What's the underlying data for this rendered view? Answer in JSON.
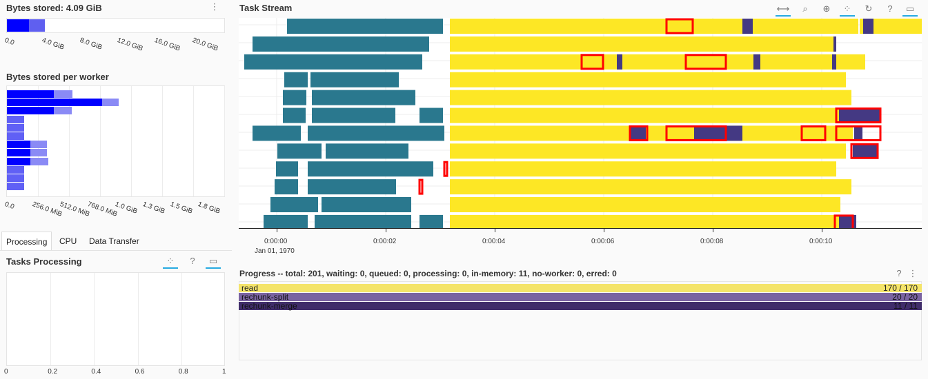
{
  "bytes_stored": {
    "title": "Bytes stored: 4.09 GiB",
    "ticks": [
      "0.0",
      "4.0 GiB",
      "8.0 GiB",
      "12.0 GiB",
      "16.0 GiB",
      "20.0 GiB"
    ],
    "memory_gib": 4.09,
    "axis_max_gib": 22
  },
  "per_worker": {
    "title": "Bytes stored per worker",
    "ticks": [
      "0.0",
      "256.0 MiB",
      "512.0 MiB",
      "768.0 MiB",
      "1.0 GiB",
      "1.3 GiB",
      "1.5 GiB",
      "1.8 GiB"
    ]
  },
  "task_stream": {
    "title": "Task Stream",
    "x_ticks": [
      "0:00:00",
      "0:00:02",
      "0:00:04",
      "0:00:06",
      "0:00:08",
      "0:00:10"
    ],
    "x_date": "Jan 01, 1970",
    "toolbar": [
      "pan-icon",
      "box-zoom-icon",
      "wheel-zoom-icon",
      "tap-icon",
      "reset-icon",
      "help-icon",
      "hover-icon"
    ]
  },
  "tabs": [
    "Processing",
    "CPU",
    "Data Transfer"
  ],
  "tasks_processing": {
    "title": "Tasks Processing",
    "ticks": [
      "0",
      "0.2",
      "0.4",
      "0.6",
      "0.8",
      "1"
    ]
  },
  "progress": {
    "title": "Progress -- total: 201, waiting: 0, queued: 0, processing: 0, in-memory: 11, no-worker: 0, erred: 0",
    "rows": [
      {
        "name": "read",
        "count": "170 / 170",
        "color": "#f4e46a"
      },
      {
        "name": "rechunk-split",
        "count": "20 / 20",
        "color": "#7a63a1"
      },
      {
        "name": "rechunk-merge",
        "count": "11 / 11",
        "color": "#402d6a"
      }
    ]
  },
  "colors": {
    "read": "#fde725",
    "teal": "#2a788e",
    "purple": "#443983",
    "transfer": "#ff0000",
    "memory": "#0000ff"
  }
}
